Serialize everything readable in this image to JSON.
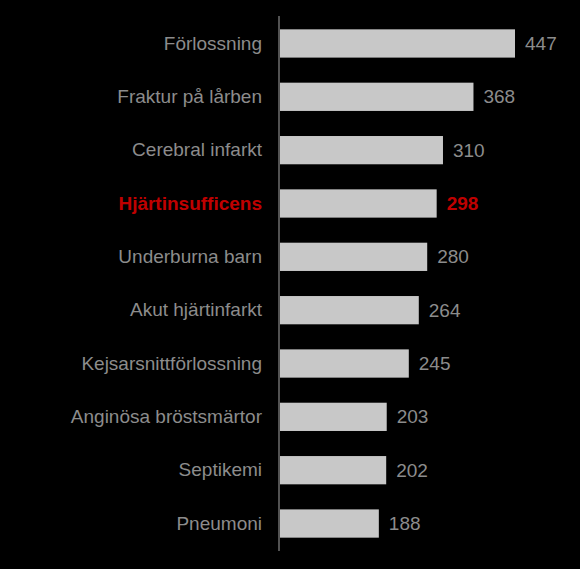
{
  "chart_data": {
    "type": "bar",
    "orientation": "horizontal",
    "categories": [
      "Förlossning",
      "Fraktur på lårben",
      "Cerebral infarkt",
      "Hjärtinsufficens",
      "Underburna barn",
      "Akut hjärtinfarkt",
      "Kejsarsnittförlossning",
      "Anginösa bröstsmärtor",
      "Septikemi",
      "Pneumoni"
    ],
    "values": [
      447,
      368,
      310,
      298,
      280,
      264,
      245,
      203,
      202,
      188
    ],
    "color": "#c8c8c8",
    "xlim": [
      0,
      447
    ],
    "data_labels": true,
    "tick_labels": "y"
  }
}
